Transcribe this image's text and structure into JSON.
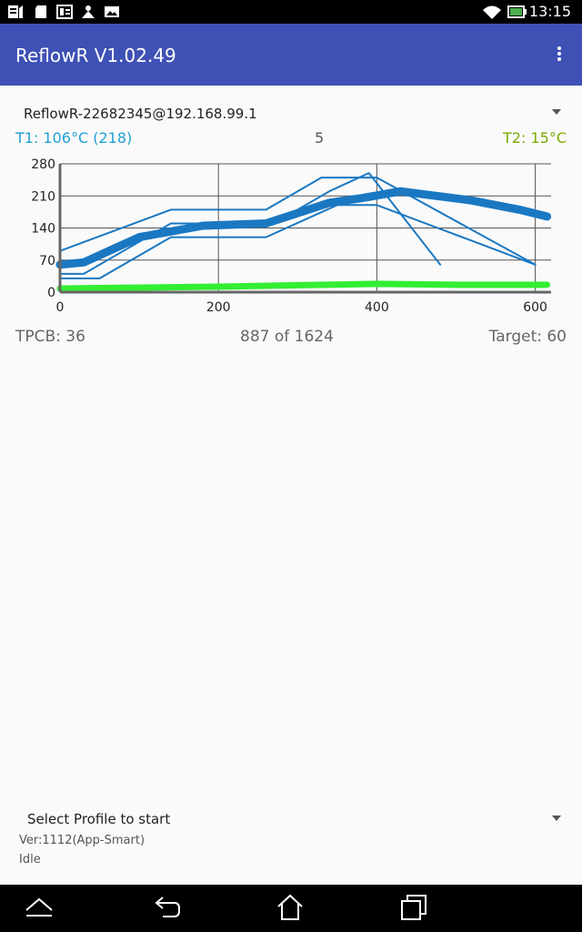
{
  "status_bar": {
    "time": "13:15",
    "left_icons": [
      "sim-data-icon",
      "sd-card-icon",
      "news-icon",
      "person-icon",
      "image-icon"
    ],
    "right_icons": [
      "wifi-icon",
      "battery-icon"
    ]
  },
  "app_bar": {
    "title": "ReflowR V1.02.49",
    "overflow_icon": "more-vert-icon",
    "color": "#3f51b5"
  },
  "device": {
    "selected": "ReflowR-22682345@192.168.99.1"
  },
  "readouts": {
    "t1": "T1: 106°C (218)",
    "center_value": "5",
    "t2": "T2: 15°C",
    "t1_color": "#1fa0d4",
    "t2_color": "#7cab00"
  },
  "chart_data": {
    "type": "line",
    "xlim": [
      0,
      620
    ],
    "ylim": [
      0,
      280
    ],
    "x_ticks": [
      "0",
      "200",
      "400",
      "600"
    ],
    "y_ticks": [
      "0",
      "70",
      "140",
      "210",
      "280"
    ],
    "grid": true,
    "series": [
      {
        "color": "#1a78c2",
        "width": 2,
        "x": [
          0,
          140,
          260,
          330,
          400,
          600
        ],
        "y": [
          90,
          180,
          180,
          250,
          250,
          60
        ]
      },
      {
        "color": "#1a78c2",
        "width": 2,
        "x": [
          0,
          30,
          140,
          270,
          340,
          390,
          480
        ],
        "y": [
          40,
          40,
          150,
          150,
          220,
          260,
          60
        ]
      },
      {
        "color": "#1a78c2",
        "width": 2,
        "x": [
          0,
          50,
          140,
          260,
          350,
          400,
          600
        ],
        "y": [
          30,
          30,
          120,
          120,
          190,
          190,
          60
        ]
      },
      {
        "color": "#1a78c2",
        "width": 9,
        "x": [
          0,
          30,
          100,
          180,
          260,
          340,
          380,
          430,
          520,
          580,
          615
        ],
        "y": [
          60,
          65,
          120,
          145,
          150,
          195,
          205,
          220,
          200,
          180,
          165
        ]
      },
      {
        "color": "#33ee33",
        "width": 7,
        "x": [
          0,
          100,
          200,
          300,
          400,
          500,
          615
        ],
        "y": [
          8,
          10,
          12,
          15,
          18,
          16,
          16
        ]
      }
    ]
  },
  "stats": {
    "tpcb": "TPCB: 36",
    "progress": "887 of 1624",
    "target": "Target: 60"
  },
  "profile": {
    "placeholder": "Select Profile to start"
  },
  "footer": {
    "version": "Ver:1112(App-Smart)",
    "state": "Idle"
  },
  "nav_bar": {
    "icons": [
      "menu-up-icon",
      "back-icon",
      "home-icon",
      "recents-icon"
    ]
  }
}
